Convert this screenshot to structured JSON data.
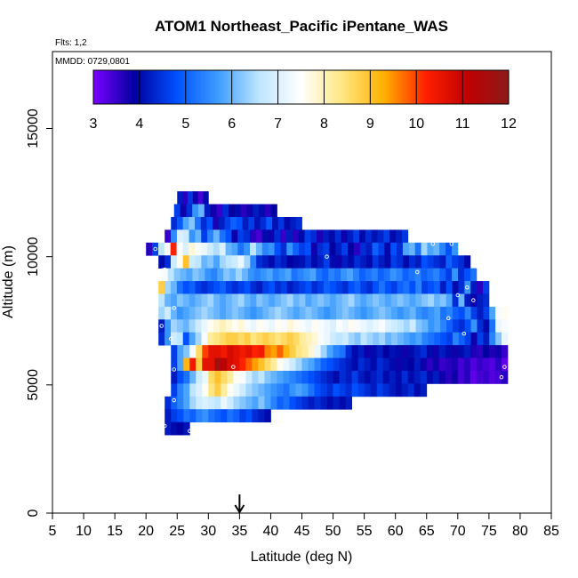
{
  "chart_data": {
    "type": "heatmap",
    "title": "ATOM1 Northeast_Pacific iPentane_WAS",
    "flights_label": "Flts: 1,2",
    "dates_label": "MMDD: 0729,0801",
    "xlabel": "Latitude (deg N)",
    "ylabel": "Altitude (m)",
    "xlim": [
      5,
      85
    ],
    "ylim": [
      0,
      18000
    ],
    "x_ticks": [
      5,
      10,
      15,
      20,
      25,
      30,
      35,
      40,
      45,
      50,
      55,
      60,
      65,
      70,
      75,
      80,
      85
    ],
    "y_ticks": [
      0,
      5000,
      10000,
      15000
    ],
    "colorbar": {
      "min": 3,
      "max": 12,
      "ticks": [
        3,
        4,
        5,
        6,
        7,
        8,
        9,
        10,
        11,
        12
      ],
      "colors": [
        "#7a00ff",
        "#0000a0",
        "#0050ff",
        "#3d9cff",
        "#bfe6ff",
        "#ffffff",
        "#ffe680",
        "#ffb000",
        "#ff2000",
        "#c00000",
        "#8b1a1a"
      ]
    },
    "marker_latitude": 35,
    "rows": [
      {
        "alt": 12300,
        "x0": 25,
        "x1": 30,
        "values": [
          4.2,
          3.6,
          4.5,
          3.8,
          3.4,
          4.0
        ]
      },
      {
        "alt": 11800,
        "x0": 24.5,
        "x1": 41,
        "values": [
          4.6,
          3.8,
          4.4,
          5.6,
          6.0,
          4.2,
          3.8,
          3.5,
          4.4,
          3.9,
          4.0,
          3.6,
          3.8,
          4.2,
          4.0,
          3.6,
          3.9
        ]
      },
      {
        "alt": 11300,
        "x0": 24,
        "x1": 45,
        "values": [
          4.4,
          4.9,
          5.8,
          6.2,
          5.2,
          4.4,
          4.8,
          3.7,
          4.2,
          4.6,
          5.0,
          4.8,
          4.2,
          4.6,
          4.1,
          4.4,
          4.9,
          4.1,
          4.5,
          4.0,
          4.2,
          4.4
        ]
      },
      {
        "alt": 10800,
        "x0": 23,
        "x1": 62,
        "values": [
          3.5,
          5.5,
          7.0,
          6.8,
          5.6,
          6.0,
          4.6,
          5.4,
          6.0,
          5.2,
          4.8,
          3.8,
          4.6,
          4.4,
          3.6,
          3.4,
          4.0,
          3.8,
          4.4,
          3.5,
          4.2,
          3.6,
          4.0,
          4.6,
          4.4,
          3.7,
          4.2,
          4.0,
          4.4,
          3.8,
          4.2,
          4.6,
          4.0,
          4.4,
          4.1,
          4.3,
          4.6,
          4.0,
          4.2,
          4.5
        ]
      },
      {
        "alt": 10300,
        "x0": 20,
        "x1": 70,
        "values": [
          3.6,
          4.6,
          6.6,
          7.4,
          10.2,
          7.5,
          7.0,
          7.8,
          7.4,
          7.2,
          6.8,
          6.5,
          7.0,
          6.0,
          5.8,
          5.2,
          5.6,
          6.6,
          6.0,
          5.4,
          5.6,
          4.8,
          4.4,
          5.6,
          5.0,
          4.6,
          4.8,
          3.8,
          4.4,
          4.6,
          3.9,
          4.2,
          4.6,
          3.9,
          3.6,
          4.4,
          4.2,
          5.0,
          4.6,
          4.0,
          4.8,
          4.4,
          5.8,
          6.0,
          5.2,
          6.4,
          5.8,
          6.0,
          5.4,
          4.8,
          5.6
        ]
      },
      {
        "alt": 9800,
        "x0": 22,
        "x1": 72,
        "values": [
          4.0,
          4.4,
          6.8,
          7.6,
          9.0,
          6.8,
          6.6,
          6.0,
          6.2,
          5.8,
          6.4,
          6.6,
          6.8,
          7.2,
          6.4,
          5.4,
          4.4,
          4.2,
          4.0,
          4.4,
          4.2,
          3.9,
          4.0,
          4.1,
          4.4,
          4.0,
          4.2,
          4.6,
          4.0,
          3.8,
          4.2,
          4.0,
          4.4,
          4.2,
          4.0,
          4.5,
          4.2,
          4.0,
          4.6,
          4.4,
          4.0,
          4.4,
          4.2,
          4.8,
          4.6,
          4.4,
          4.2,
          5.0,
          4.6,
          4.4,
          4.0
        ]
      },
      {
        "alt": 9300,
        "x0": 22.5,
        "x1": 73,
        "values": [
          7.4,
          6.6,
          6.2,
          6.0,
          5.8,
          6.2,
          6.0,
          5.6,
          5.4,
          5.8,
          6.2,
          6.0,
          6.4,
          6.0,
          5.6,
          5.4,
          5.6,
          5.8,
          5.4,
          5.6,
          5.8,
          5.2,
          5.4,
          5.6,
          5.8,
          5.2,
          5.0,
          5.4,
          5.2,
          5.6,
          5.8,
          5.4,
          5.0,
          5.2,
          5.4,
          5.0,
          5.2,
          5.6,
          5.4,
          5.0,
          5.2,
          5.4,
          5.0,
          5.2,
          5.4,
          5.0,
          4.6,
          5.6,
          4.4,
          4.8,
          5.2
        ]
      },
      {
        "alt": 8800,
        "x0": 22,
        "x1": 75,
        "values": [
          8.8,
          6.4,
          6.0,
          5.2,
          4.8,
          5.0,
          4.6,
          4.4,
          4.6,
          4.8,
          5.0,
          4.6,
          4.4,
          4.6,
          4.8,
          4.4,
          4.2,
          4.6,
          4.8,
          4.4,
          4.6,
          4.2,
          4.4,
          4.6,
          4.8,
          4.4,
          4.6,
          5.0,
          4.8,
          4.6,
          4.4,
          4.8,
          5.0,
          4.6,
          4.4,
          4.8,
          5.2,
          4.8,
          4.6,
          5.0,
          5.2,
          4.8,
          5.4,
          4.6,
          4.8,
          5.0,
          4.2,
          4.8,
          4.0,
          4.4,
          5.6,
          4.2,
          3.6,
          4.6
        ]
      },
      {
        "alt": 8300,
        "x0": 22,
        "x1": 75,
        "values": [
          6.6,
          6.0,
          5.8,
          6.2,
          6.0,
          5.8,
          6.0,
          6.2,
          6.4,
          6.0,
          5.8,
          6.0,
          6.2,
          6.4,
          6.0,
          5.8,
          6.2,
          6.0,
          5.8,
          6.0,
          6.2,
          6.4,
          6.0,
          6.2,
          5.8,
          6.0,
          6.2,
          6.0,
          5.8,
          6.0,
          6.2,
          6.4,
          6.0,
          5.8,
          6.0,
          6.2,
          6.0,
          5.8,
          6.0,
          6.2,
          6.0,
          5.8,
          6.0,
          6.2,
          6.4,
          6.0,
          6.2,
          5.8,
          4.4,
          6.0,
          4.2,
          3.8,
          4.2,
          4.4
        ]
      },
      {
        "alt": 7800,
        "x0": 22,
        "x1": 78,
        "values": [
          6.4,
          6.8,
          6.0,
          5.6,
          5.8,
          6.0,
          6.2,
          6.4,
          6.2,
          6.0,
          5.8,
          6.0,
          6.2,
          6.0,
          5.8,
          5.6,
          5.8,
          6.0,
          6.2,
          6.4,
          6.2,
          6.0,
          5.8,
          6.0,
          6.2,
          6.0,
          5.8,
          5.6,
          5.8,
          6.0,
          6.2,
          6.0,
          5.8,
          5.6,
          5.8,
          6.0,
          6.2,
          6.0,
          5.8,
          5.6,
          5.8,
          6.0,
          5.6,
          5.4,
          5.6,
          5.8,
          5.2,
          5.4,
          5.0,
          4.8,
          5.4,
          4.6,
          4.2,
          4.6,
          5.8,
          7.4,
          7.6
        ]
      },
      {
        "alt": 7300,
        "x0": 22,
        "x1": 78,
        "values": [
          4.2,
          5.6,
          6.4,
          6.2,
          6.0,
          6.4,
          6.8,
          7.2,
          7.6,
          7.8,
          8.0,
          7.8,
          7.6,
          7.8,
          7.4,
          7.2,
          7.6,
          7.4,
          7.2,
          7.6,
          7.4,
          7.8,
          7.6,
          7.4,
          7.2,
          7.6,
          7.4,
          7.2,
          7.0,
          7.4,
          7.2,
          7.6,
          7.4,
          7.2,
          7.0,
          7.2,
          7.4,
          7.0,
          6.8,
          6.6,
          6.4,
          6.8,
          6.2,
          6.0,
          5.6,
          5.8,
          5.4,
          5.0,
          4.6,
          4.4,
          4.8,
          5.6,
          4.4,
          4.0,
          5.2,
          7.2,
          7.4
        ]
      },
      {
        "alt": 6800,
        "x0": 22,
        "x1": 78,
        "values": [
          4.4,
          5.6,
          6.8,
          6.6,
          4.8,
          5.8,
          6.4,
          7.4,
          8.2,
          8.4,
          8.6,
          8.8,
          8.8,
          8.6,
          8.8,
          8.4,
          8.6,
          8.8,
          8.6,
          8.4,
          8.6,
          8.8,
          8.6,
          8.2,
          8.0,
          7.8,
          7.4,
          7.2,
          6.8,
          6.6,
          6.8,
          6.4,
          6.2,
          6.6,
          6.4,
          6.2,
          6.4,
          6.0,
          6.2,
          6.0,
          5.8,
          5.6,
          5.8,
          5.4,
          5.2,
          5.0,
          4.8,
          4.6,
          5.4,
          5.0,
          4.6,
          3.8,
          4.6,
          4.2,
          5.4,
          6.2,
          7.2
        ]
      },
      {
        "alt": 6300,
        "x0": 24,
        "x1": 78,
        "values": [
          4.6,
          5.8,
          6.2,
          7.4,
          8.6,
          10.0,
          10.6,
          10.6,
          10.4,
          10.8,
          10.6,
          10.4,
          10.6,
          10.2,
          10.4,
          9.6,
          9.4,
          9.8,
          9.2,
          8.8,
          8.4,
          8.2,
          7.8,
          7.2,
          6.4,
          5.8,
          5.4,
          5.2,
          4.4,
          4.0,
          4.2,
          3.8,
          4.0,
          4.2,
          3.9,
          4.1,
          4.0,
          3.8,
          4.0,
          4.2,
          4.4,
          4.0,
          3.8,
          4.2,
          4.0,
          3.8,
          4.0,
          4.2,
          3.7,
          3.6,
          3.9,
          3.7,
          3.8,
          3.5
        ]
      },
      {
        "alt": 5800,
        "x0": 24,
        "x1": 78,
        "values": [
          4.6,
          5.8,
          9.2,
          10.4,
          8.8,
          10.6,
          10.6,
          11.6,
          11.2,
          10.8,
          10.6,
          10.2,
          9.8,
          9.4,
          9.0,
          8.6,
          8.2,
          7.6,
          7.2,
          6.8,
          6.4,
          6.0,
          5.8,
          5.4,
          5.0,
          4.8,
          4.6,
          4.4,
          4.2,
          4.0,
          4.4,
          4.2,
          4.0,
          4.4,
          4.2,
          4.0,
          3.8,
          4.0,
          3.9,
          4.2,
          3.8,
          3.6,
          3.8,
          3.5,
          3.6,
          3.7,
          3.4,
          3.6,
          3.3,
          3.5,
          3.4,
          3.3,
          3.6,
          3.2
        ]
      },
      {
        "alt": 5300,
        "x0": 24,
        "x1": 78,
        "values": [
          4.2,
          4.8,
          5.2,
          6.0,
          6.8,
          7.2,
          8.6,
          9.0,
          8.6,
          8.2,
          7.6,
          7.4,
          6.8,
          6.4,
          6.6,
          6.2,
          6.0,
          5.8,
          5.6,
          5.4,
          5.2,
          5.0,
          4.8,
          4.6,
          4.4,
          4.2,
          4.0,
          4.4,
          4.2,
          4.6,
          4.2,
          4.0,
          4.2,
          4.4,
          4.0,
          4.2,
          4.0,
          4.4,
          4.0,
          4.2,
          4.4,
          4.0,
          4.2,
          3.8,
          3.6,
          3.8,
          3.4,
          3.6,
          3.2,
          3.4,
          3.5,
          3.3,
          3.4,
          3.6
        ]
      },
      {
        "alt": 4800,
        "x0": 24,
        "x1": 65,
        "values": [
          4.6,
          5.4,
          5.8,
          6.6,
          7.0,
          7.6,
          8.4,
          8.8,
          8.2,
          7.6,
          7.2,
          6.8,
          6.4,
          6.2,
          6.0,
          5.8,
          5.6,
          5.4,
          5.2,
          5.6,
          5.8,
          5.6,
          5.2,
          4.8,
          4.6,
          4.4,
          4.8,
          4.6,
          4.4,
          4.8,
          4.6,
          4.4,
          4.2,
          4.6,
          4.4,
          4.2,
          4.0,
          4.2,
          4.4,
          4.0,
          4.2
        ]
      },
      {
        "alt": 4300,
        "x0": 23,
        "x1": 53,
        "values": [
          4.4,
          5.0,
          5.4,
          5.8,
          6.4,
          6.8,
          7.0,
          6.8,
          6.6,
          7.2,
          6.8,
          6.4,
          6.2,
          6.0,
          5.8,
          6.2,
          5.8,
          5.4,
          5.0,
          5.2,
          4.8,
          4.6,
          4.4,
          4.2,
          4.4,
          4.2,
          4.0,
          4.2,
          4.0,
          4.2
        ]
      },
      {
        "alt": 3800,
        "x0": 23,
        "x1": 40,
        "values": [
          4.2,
          4.6,
          4.8,
          5.2,
          5.0,
          5.4,
          5.6,
          5.2,
          5.0,
          4.8,
          5.2,
          5.0,
          4.6,
          4.8,
          4.4,
          4.2,
          4.0
        ]
      },
      {
        "alt": 3300,
        "x0": 23,
        "x1": 27,
        "values": [
          4.2,
          4.0,
          3.9,
          4.1
        ]
      }
    ],
    "observations": [
      {
        "lat": 26.5,
        "alt": 12700
      },
      {
        "lat": 23.5,
        "alt": 11200
      },
      {
        "lat": 21.5,
        "alt": 10300
      },
      {
        "lat": 23,
        "alt": 9500
      },
      {
        "lat": 24.5,
        "alt": 8000
      },
      {
        "lat": 22.5,
        "alt": 7300
      },
      {
        "lat": 24,
        "alt": 6800
      },
      {
        "lat": 24.5,
        "alt": 5600
      },
      {
        "lat": 34,
        "alt": 5700
      },
      {
        "lat": 24.5,
        "alt": 4400
      },
      {
        "lat": 23,
        "alt": 3400
      },
      {
        "lat": 27,
        "alt": 3200
      },
      {
        "lat": 49,
        "alt": 10000
      },
      {
        "lat": 63.5,
        "alt": 9400
      },
      {
        "lat": 66,
        "alt": 10500
      },
      {
        "lat": 69,
        "alt": 10500
      },
      {
        "lat": 71,
        "alt": 10400
      },
      {
        "lat": 70,
        "alt": 8500
      },
      {
        "lat": 71.5,
        "alt": 8800
      },
      {
        "lat": 71,
        "alt": 7000
      },
      {
        "lat": 72.5,
        "alt": 8300
      },
      {
        "lat": 68.5,
        "alt": 7600
      },
      {
        "lat": 77.5,
        "alt": 5700
      },
      {
        "lat": 77,
        "alt": 5300
      }
    ]
  }
}
